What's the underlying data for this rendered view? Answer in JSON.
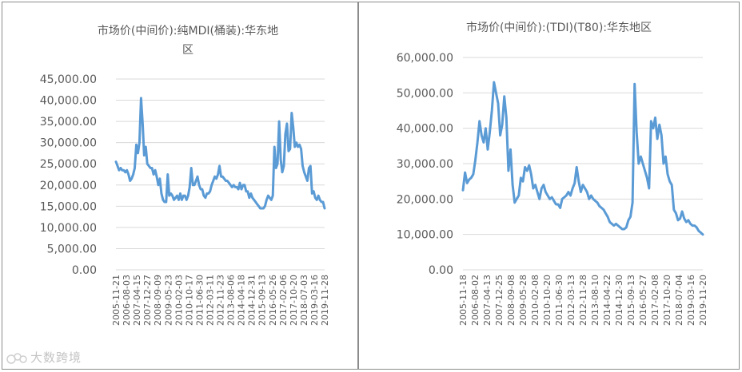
{
  "watermark": "大数跨境",
  "accent_color": "#5b9bd5",
  "chart_data": [
    {
      "type": "line",
      "title_lines": [
        "市场价(中间价):纯MDI(桶装):华东地",
        "区"
      ],
      "ylim": [
        0,
        45000
      ],
      "yticks": [
        "0.00",
        "5,000.00",
        "10,000.00",
        "15,000.00",
        "20,000.00",
        "25,000.00",
        "30,000.00",
        "35,000.00",
        "40,000.00",
        "45,000.00"
      ],
      "ytick_values": [
        0,
        5000,
        10000,
        15000,
        20000,
        25000,
        30000,
        35000,
        40000,
        45000
      ],
      "xticks": [
        "2005-11-21",
        "2006-08-03",
        "2007-04-15",
        "2007-12-27",
        "2008-09-09",
        "2009-05-23",
        "2010-02-03",
        "2010-10-17",
        "2011-06-30",
        "2012-03-11",
        "2012-11-23",
        "2013-08-06",
        "2014-04-18",
        "2014-12-31",
        "2015-09-13",
        "2016-05-26",
        "2017-02-06",
        "2017-10-20",
        "2018-07-03",
        "2019-03-16",
        "2019-11-28"
      ],
      "grid": true,
      "legend": "none",
      "series": [
        {
          "values": [
            25500,
            24500,
            23500,
            24000,
            23500,
            23500,
            23000,
            23500,
            22500,
            21000,
            21500,
            22500,
            24000,
            29500,
            27500,
            30000,
            40500,
            34500,
            27000,
            29000,
            25000,
            24500,
            24000,
            24000,
            22500,
            23500,
            22000,
            20000,
            21500,
            18000,
            16500,
            16000,
            16000,
            22500,
            17500,
            18000,
            17500,
            16500,
            17000,
            17500,
            16500,
            18000,
            16500,
            17500,
            17500,
            16500,
            17500,
            19500,
            24000,
            20000,
            20000,
            21000,
            22000,
            20000,
            19000,
            19000,
            17500,
            17000,
            18000,
            18000,
            18500,
            20000,
            21000,
            22000,
            21500,
            22500,
            24500,
            22000,
            22000,
            21500,
            21000,
            21000,
            20500,
            20000,
            19500,
            20000,
            19500,
            19500,
            19000,
            20500,
            19000,
            20000,
            20000,
            18500,
            18500,
            17000,
            18000,
            17000,
            16500,
            16000,
            15500,
            15000,
            14500,
            14500,
            14500,
            15000,
            16500,
            17500,
            17000,
            16500,
            17500,
            29000,
            24000,
            25000,
            35000,
            26000,
            23000,
            24500,
            32000,
            34500,
            28000,
            28500,
            37000,
            33500,
            29000,
            30000,
            29000,
            29500,
            28500,
            24500,
            23000,
            22000,
            21000,
            24000,
            24500,
            18000,
            18500,
            17000,
            16500,
            17500,
            16500,
            16000,
            16000,
            14500
          ]
        }
      ]
    },
    {
      "type": "line",
      "title_lines": [
        "市场价(中间价):(TDI)(T80):华东地区"
      ],
      "ylim": [
        0,
        60000
      ],
      "yticks": [
        "0.00",
        "10,000.00",
        "20,000.00",
        "30,000.00",
        "40,000.00",
        "50,000.00",
        "60,000.00"
      ],
      "ytick_values": [
        0,
        10000,
        20000,
        30000,
        40000,
        50000,
        60000
      ],
      "xticks": [
        "2005-11-18",
        "2006-08-02",
        "2007-04-13",
        "2007-12-25",
        "2008-09-08",
        "2009-05-28",
        "2010-02-08",
        "2010-10-20",
        "2011-06-30",
        "2012-03-13",
        "2012-11-28",
        "2013-08-10",
        "2014-04-22",
        "2014-12-30",
        "2015-09-13",
        "2016-05-27",
        "2017-02-08",
        "2017-10-20",
        "2018-07-04",
        "2019-03-16",
        "2019-11-20"
      ],
      "grid": true,
      "legend": "none",
      "series": [
        {
          "values": [
            22500,
            27500,
            24500,
            25500,
            26000,
            27000,
            31000,
            36000,
            42000,
            38000,
            36000,
            40000,
            34000,
            39000,
            45000,
            53000,
            50000,
            47000,
            38000,
            41000,
            49000,
            43000,
            28000,
            34000,
            24000,
            19000,
            20000,
            21000,
            26000,
            25000,
            29000,
            28000,
            29500,
            27000,
            23000,
            24000,
            22000,
            20000,
            23000,
            24000,
            22000,
            21000,
            20000,
            20500,
            19500,
            18500,
            18500,
            17500,
            20000,
            20500,
            21000,
            22000,
            21000,
            23000,
            24500,
            29000,
            25000,
            22000,
            24000,
            23000,
            22000,
            20000,
            21000,
            20000,
            19500,
            19000,
            18000,
            17500,
            17000,
            16000,
            15000,
            13500,
            13000,
            12500,
            13000,
            12500,
            12000,
            11500,
            11500,
            12000,
            14000,
            15000,
            19000,
            52500,
            39000,
            30000,
            32000,
            30000,
            28000,
            26000,
            23000,
            42000,
            40000,
            43000,
            37000,
            41000,
            38000,
            30000,
            32000,
            27000,
            25000,
            24000,
            17000,
            16000,
            14000,
            14500,
            16500,
            14500,
            13500,
            14000,
            13000,
            12500,
            12500,
            12000,
            11000,
            10500,
            10000
          ]
        }
      ]
    }
  ]
}
